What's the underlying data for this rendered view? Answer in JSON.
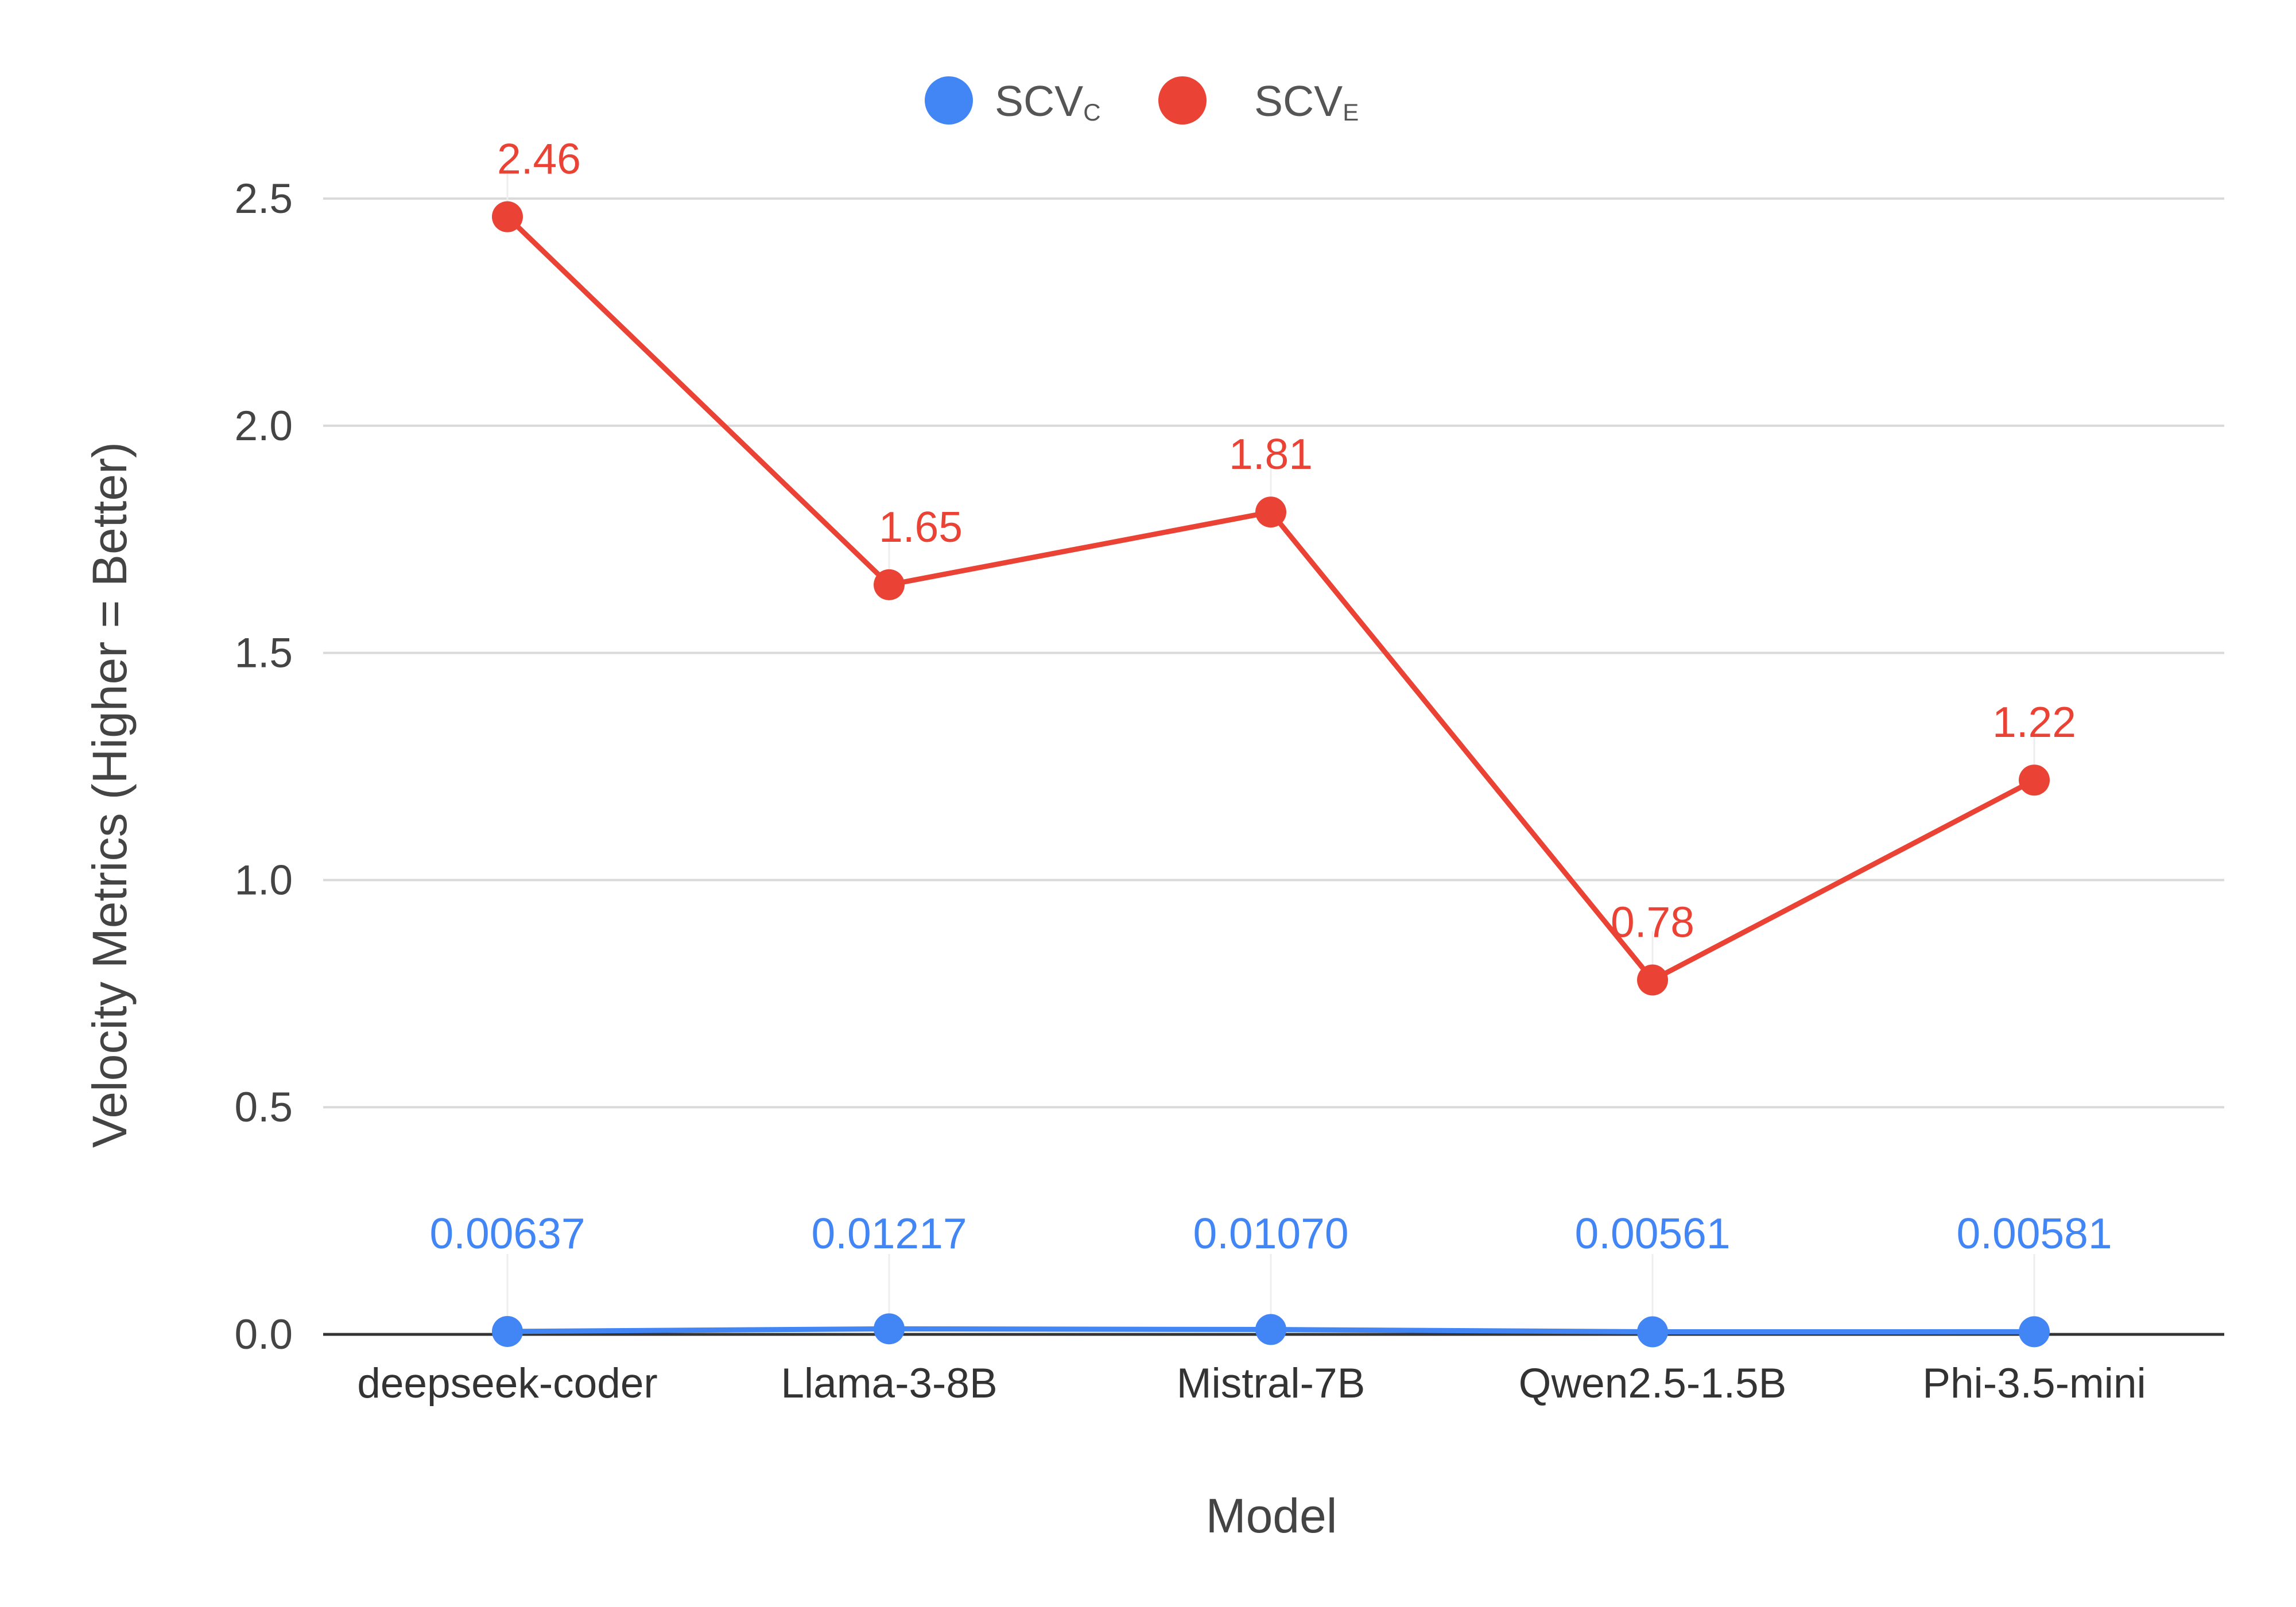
{
  "chart_data": {
    "type": "line",
    "categories": [
      "deepseek-coder",
      "Llama-3-8B",
      "Mistral-7B",
      "Qwen2.5-1.5B",
      "Phi-3.5-mini"
    ],
    "series": [
      {
        "name": "SCV_C",
        "legend_main": "SCV",
        "legend_sub": "C",
        "color": "#4285f4",
        "values": [
          0.00637,
          0.01217,
          0.0107,
          0.00561,
          0.00581
        ],
        "labels": [
          "0.00637",
          "0.01217",
          "0.01070",
          "0.00561",
          "0.00581"
        ]
      },
      {
        "name": "SCV_E",
        "legend_main": "SCV",
        "legend_sub": "E",
        "color": "#ea4335",
        "values": [
          2.46,
          1.65,
          1.81,
          0.78,
          1.22
        ],
        "labels": [
          "2.46",
          "1.65",
          "1.81",
          "0.78",
          "1.22"
        ]
      }
    ],
    "xlabel": "Model",
    "ylabel": "Velocity Metrics (Higher = Better)",
    "ylim": [
      0,
      2.5
    ],
    "yticks": [
      0,
      0.5,
      1.0,
      1.5,
      2.0,
      2.5
    ],
    "ytick_labels": [
      "0.0",
      "0.5",
      "1.0",
      "1.5",
      "2.0",
      "2.5"
    ],
    "grid": true,
    "legend_position": "top-center"
  }
}
